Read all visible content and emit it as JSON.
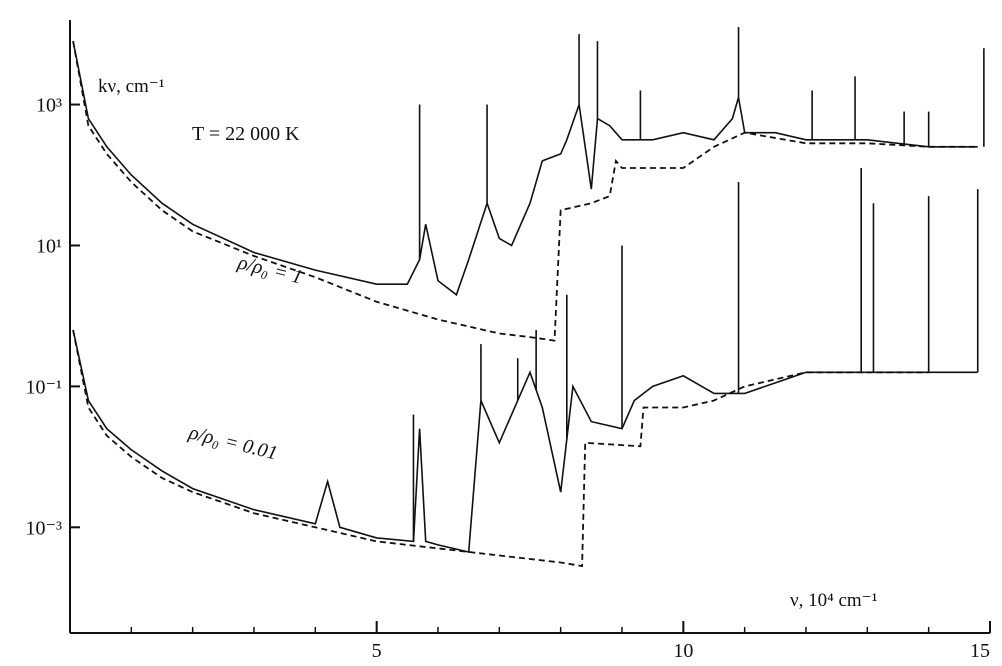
{
  "chart_data": {
    "type": "line",
    "title": "",
    "ylabel": "kν, cm⁻¹",
    "xlabel": "ν, 10⁴ cm⁻¹",
    "xlim": [
      0,
      15
    ],
    "ylim_log10": [
      -4.5,
      4.2
    ],
    "y_scale": "log",
    "grid": false,
    "x_ticks": [
      {
        "value": 5,
        "label": "5"
      },
      {
        "value": 10,
        "label": "10"
      },
      {
        "value": 15,
        "label": "15"
      }
    ],
    "y_ticks": [
      {
        "value_log10": 3,
        "label": "10³"
      },
      {
        "value_log10": 1,
        "label": "10¹"
      },
      {
        "value_log10": -1,
        "label": "10⁻¹"
      },
      {
        "value_log10": -3,
        "label": "10⁻³"
      }
    ],
    "annotations": [
      {
        "text": "T = 22 000 K"
      },
      {
        "text": "ρ/ρ₀ = 1"
      },
      {
        "text": "ρ/ρ₀ = 0.01"
      }
    ],
    "series": [
      {
        "style": "solid",
        "x": [
          0.05,
          0.3,
          0.6,
          1.0,
          1.5,
          2.0,
          3.0,
          4.0,
          5.0,
          5.5,
          5.7,
          5.8,
          6.0,
          6.3,
          6.5,
          6.8,
          7.0,
          7.2,
          7.5,
          7.7,
          8.0,
          8.1,
          8.3,
          8.5,
          8.6,
          8.8,
          9.0,
          9.2,
          9.5,
          10.0,
          10.5,
          10.8,
          10.9,
          11.0,
          11.5,
          12.0,
          13.0,
          14.0,
          14.5,
          14.8
        ],
        "y": [
          3.9,
          2.8,
          2.4,
          2.0,
          1.6,
          1.3,
          0.9,
          0.65,
          0.45,
          0.45,
          0.8,
          1.3,
          0.5,
          0.3,
          0.8,
          1.6,
          1.1,
          1.0,
          1.6,
          2.2,
          2.3,
          2.5,
          3.0,
          1.8,
          2.8,
          2.7,
          2.5,
          2.5,
          2.5,
          2.6,
          2.5,
          2.8,
          3.1,
          2.6,
          2.6,
          2.5,
          2.5,
          2.4,
          2.4,
          2.4
        ]
      },
      {
        "style": "dashed",
        "x": [
          0.05,
          0.3,
          0.6,
          1.0,
          1.5,
          2.0,
          3.0,
          4.0,
          5.0,
          6.0,
          7.0,
          7.5,
          7.9,
          8.0,
          8.5,
          8.8,
          8.9,
          9.0,
          10.0,
          10.5,
          11.0,
          12.0,
          13.0,
          14.0,
          14.8
        ],
        "y": [
          3.9,
          2.7,
          2.3,
          1.9,
          1.5,
          1.2,
          0.85,
          0.55,
          0.2,
          -0.05,
          -0.25,
          -0.3,
          -0.35,
          1.5,
          1.6,
          1.7,
          2.2,
          2.1,
          2.1,
          2.4,
          2.6,
          2.45,
          2.45,
          2.4,
          2.4
        ]
      },
      {
        "style": "solid",
        "x": [
          0.05,
          0.3,
          0.6,
          1.0,
          1.5,
          2.0,
          3.0,
          4.0,
          4.2,
          4.4,
          5.0,
          5.6,
          5.7,
          5.8,
          6.0,
          6.5,
          6.7,
          7.0,
          7.5,
          7.7,
          8.0,
          8.2,
          8.5,
          9.0,
          9.2,
          9.5,
          10.0,
          10.5,
          11.0,
          11.5,
          12.0,
          12.5,
          13.0,
          13.5,
          14.0,
          14.8
        ],
        "y": [
          -0.2,
          -1.2,
          -1.6,
          -1.9,
          -2.2,
          -2.45,
          -2.75,
          -2.95,
          -2.35,
          -3.0,
          -3.15,
          -3.2,
          -1.6,
          -3.2,
          -3.25,
          -3.35,
          -1.2,
          -1.8,
          -0.8,
          -1.3,
          -2.5,
          -1.0,
          -1.5,
          -1.6,
          -1.2,
          -1.0,
          -0.85,
          -1.1,
          -1.1,
          -0.95,
          -0.8,
          -0.8,
          -0.8,
          -0.8,
          -0.8,
          -0.8
        ]
      },
      {
        "style": "dashed",
        "x": [
          0.05,
          0.3,
          0.6,
          1.0,
          1.5,
          2.0,
          3.0,
          4.0,
          5.0,
          6.0,
          7.0,
          8.0,
          8.35,
          8.4,
          9.3,
          9.35,
          10.0,
          10.5,
          11.0,
          12.0,
          14.0
        ],
        "y": [
          -0.2,
          -1.3,
          -1.7,
          -2.0,
          -2.3,
          -2.5,
          -2.8,
          -3.0,
          -3.2,
          -3.3,
          -3.4,
          -3.5,
          -3.55,
          -1.8,
          -1.85,
          -1.3,
          -1.3,
          -1.2,
          -1.0,
          -0.8,
          -0.8
        ]
      }
    ],
    "line_spikes_upper": [
      {
        "x": 5.7,
        "y_top": 3.0
      },
      {
        "x": 6.8,
        "y_top": 3.0
      },
      {
        "x": 8.3,
        "y_top": 4.0
      },
      {
        "x": 8.6,
        "y_top": 3.9
      },
      {
        "x": 9.3,
        "y_top": 3.2
      },
      {
        "x": 10.9,
        "y_top": 4.1
      },
      {
        "x": 12.1,
        "y_top": 3.2
      },
      {
        "x": 12.8,
        "y_top": 3.4
      },
      {
        "x": 13.6,
        "y_top": 2.9
      },
      {
        "x": 14.0,
        "y_top": 2.9
      },
      {
        "x": 14.9,
        "y_top": 3.8
      }
    ],
    "line_spikes_lower": [
      {
        "x": 5.6,
        "y_top": -1.4
      },
      {
        "x": 6.7,
        "y_top": -0.4
      },
      {
        "x": 7.3,
        "y_top": -0.6
      },
      {
        "x": 7.6,
        "y_top": -0.2
      },
      {
        "x": 8.1,
        "y_top": 0.3
      },
      {
        "x": 9.0,
        "y_top": 1.0
      },
      {
        "x": 10.9,
        "y_top": 1.9
      },
      {
        "x": 12.9,
        "y_top": 2.1
      },
      {
        "x": 13.1,
        "y_top": 1.6
      },
      {
        "x": 14.0,
        "y_top": 1.7
      },
      {
        "x": 14.8,
        "y_top": 1.8
      }
    ]
  }
}
